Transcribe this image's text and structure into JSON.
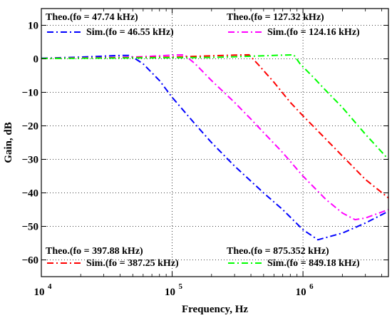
{
  "chart_data": {
    "type": "line",
    "xlabel": "Frequency, Hz",
    "ylabel": "Gain, dB",
    "xscale": "log",
    "xlim": [
      10000,
      4500000
    ],
    "ylim": [
      -65,
      15
    ],
    "grid": true,
    "x_ticks": [
      {
        "value": 10000,
        "base": "10",
        "exp": "4"
      },
      {
        "value": 100000,
        "base": "10",
        "exp": "5"
      },
      {
        "value": 1000000,
        "base": "10",
        "exp": "6"
      }
    ],
    "y_ticks": [
      10,
      0,
      -10,
      -20,
      -30,
      -40,
      -50,
      -60
    ],
    "legend_groups": [
      {
        "position": "top-left",
        "theo_label": "Theo.(fo = 47.74 kHz)",
        "sim_label": "Sim.(fo = 46.55 kHz)",
        "color": "#0000ff"
      },
      {
        "position": "top-right",
        "theo_label": "Theo.(fo = 127.32 kHz)",
        "sim_label": "Sim.(fo = 124.16 kHz)",
        "color": "#ff00ff"
      },
      {
        "position": "bottom-left",
        "theo_label": "Theo.(fo = 397.88 kHz)",
        "sim_label": "Sim.(fo = 387.25 kHz)",
        "color": "#ff0000"
      },
      {
        "position": "bottom-right",
        "theo_label": "Theo.(fo = 875.352 kHz)",
        "sim_label": "Sim.(fo = 849.18 kHz)",
        "color": "#00ff00"
      }
    ],
    "series": [
      {
        "color": "#0000ff",
        "x": [
          10000,
          20000,
          30000,
          40000,
          46550,
          50000,
          60000,
          80000,
          100000,
          150000,
          200000,
          300000,
          500000,
          700000,
          1000000,
          1300000,
          2000000,
          3000000,
          4500000
        ],
        "y": [
          0.2,
          0.5,
          0.8,
          1.0,
          1.0,
          0.5,
          -1.5,
          -6.5,
          -11.5,
          -19.5,
          -25,
          -32,
          -40,
          -45,
          -51,
          -54,
          -52,
          -49,
          -45.5
        ]
      },
      {
        "color": "#ff00ff",
        "x": [
          10000,
          50000,
          80000,
          100000,
          124160,
          150000,
          200000,
          300000,
          400000,
          500000,
          700000,
          1000000,
          1500000,
          2000000,
          2500000,
          3000000,
          4500000
        ],
        "y": [
          0.1,
          0.5,
          0.9,
          1.1,
          1.2,
          -1.5,
          -6.5,
          -13,
          -18,
          -22,
          -28,
          -35,
          -42,
          -46,
          -48,
          -47.5,
          -45
        ]
      },
      {
        "color": "#ff0000",
        "x": [
          10000,
          100000,
          200000,
          300000,
          387250,
          450000,
          600000,
          800000,
          1000000,
          1500000,
          2000000,
          3000000,
          4500000
        ],
        "y": [
          0.1,
          0.5,
          0.9,
          1.1,
          1.2,
          -1.5,
          -7,
          -13,
          -17,
          -24,
          -29,
          -36,
          -41.5
        ]
      },
      {
        "color": "#00ff00",
        "x": [
          10000,
          200000,
          500000,
          700000,
          849180,
          950000,
          1200000,
          1500000,
          2000000,
          3000000,
          4500000
        ],
        "y": [
          0.1,
          0.4,
          0.9,
          1.1,
          1.2,
          -1.5,
          -5.5,
          -9.5,
          -14.5,
          -22.5,
          -30
        ]
      }
    ]
  }
}
